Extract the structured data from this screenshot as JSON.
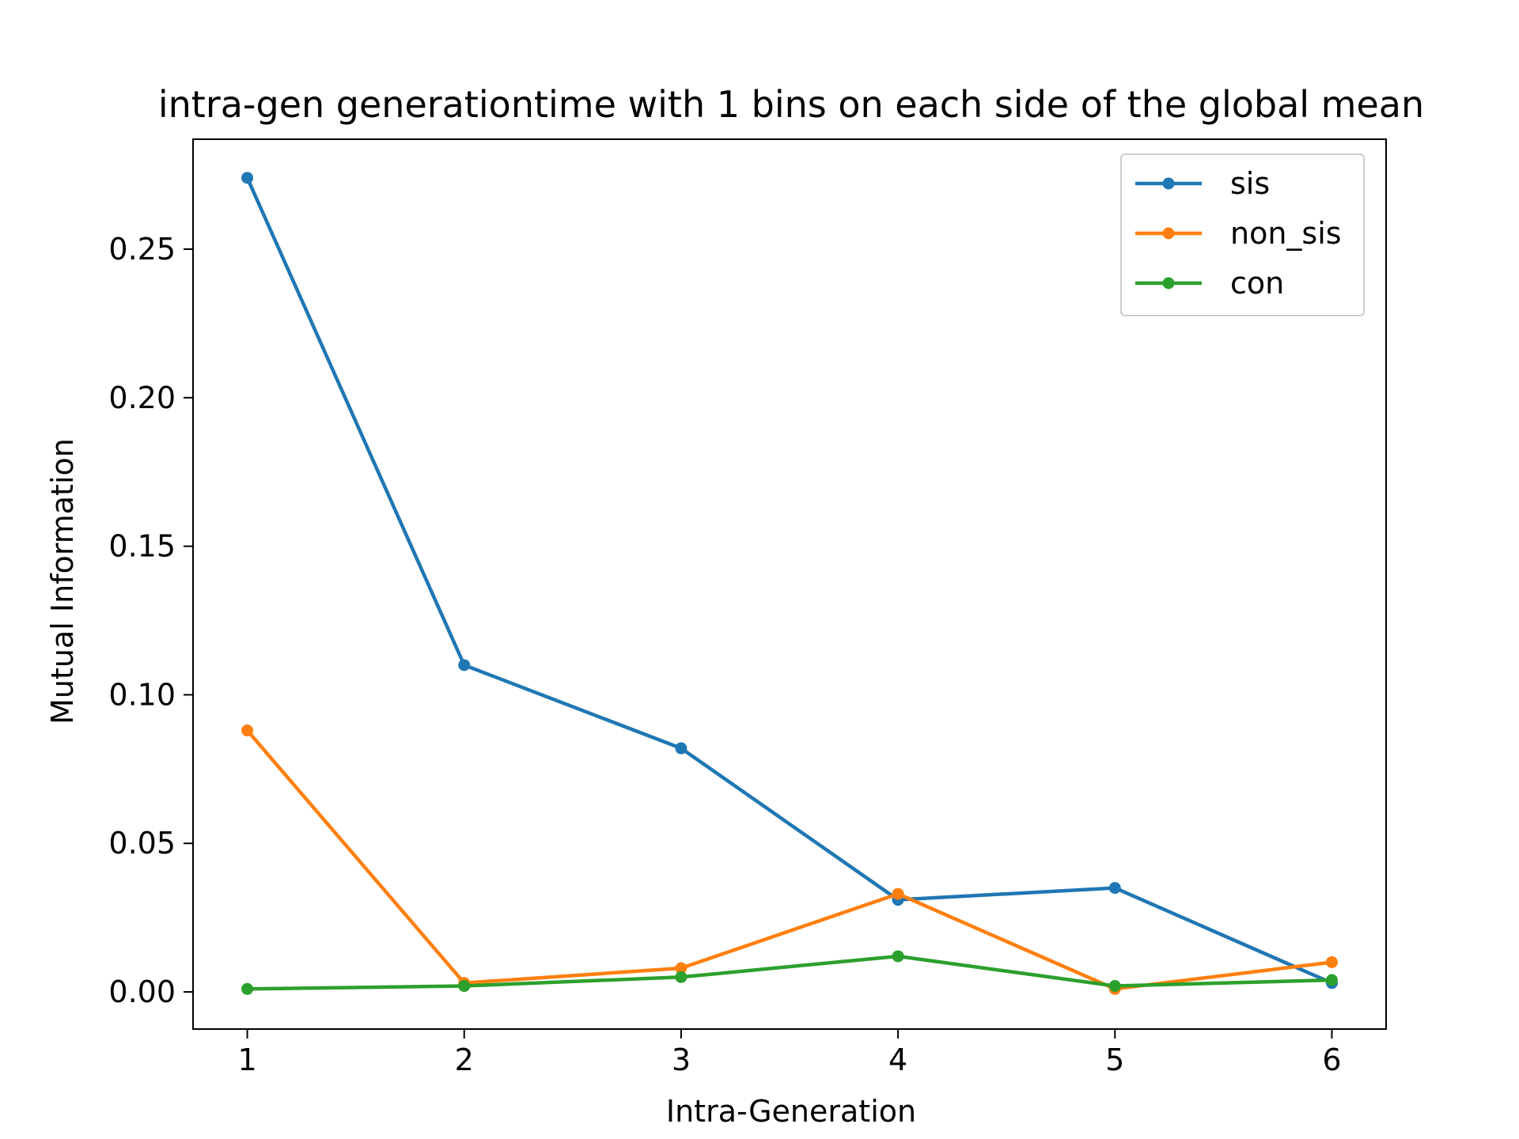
{
  "chart_data": {
    "type": "line",
    "title": "intra-gen generationtime with 1 bins on each side of the global mean",
    "xlabel": "Intra-Generation",
    "ylabel": "Mutual Information",
    "x": [
      1,
      2,
      3,
      4,
      5,
      6
    ],
    "xticks": [
      "1",
      "2",
      "3",
      "4",
      "5",
      "6"
    ],
    "xlim": [
      0.75,
      6.25
    ],
    "yticks": [
      "0.00",
      "0.05",
      "0.10",
      "0.15",
      "0.20",
      "0.25"
    ],
    "ylim": [
      -0.0125,
      0.287
    ],
    "grid": false,
    "legend_position": "top-right",
    "marker": "dot",
    "series": [
      {
        "name": "sis",
        "color": "#1f77b4",
        "values": [
          0.274,
          0.11,
          0.082,
          0.031,
          0.035,
          0.003
        ]
      },
      {
        "name": "non_sis",
        "color": "#ff7f0e",
        "values": [
          0.088,
          0.003,
          0.008,
          0.033,
          0.001,
          0.01
        ]
      },
      {
        "name": "con",
        "color": "#2ca02c",
        "values": [
          0.001,
          0.002,
          0.005,
          0.012,
          0.002,
          0.004
        ]
      }
    ]
  }
}
